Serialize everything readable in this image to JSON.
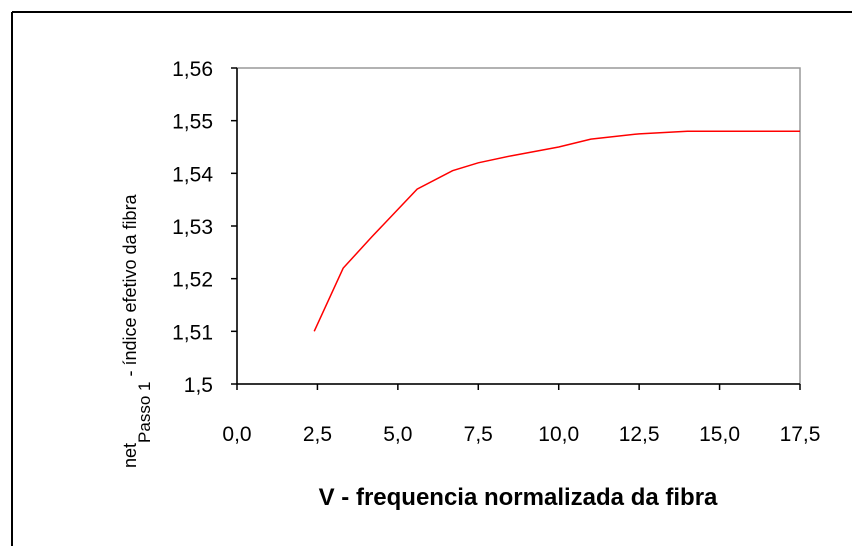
{
  "chart_data": {
    "type": "line",
    "xlabel": "V - frequencia normalizada da fibra",
    "ylabel": "net",
    "ylabel_sub": "Passo 1",
    "ylabel_rest": " - índice efetivo da fibra",
    "x": [
      2.4,
      3.3,
      4.2,
      5.6,
      6.7,
      7.5,
      8.5,
      10,
      11,
      12.5,
      14,
      17.5
    ],
    "series": [
      {
        "color": "#ff0000",
        "values": [
          1.51,
          1.522,
          1.528,
          1.537,
          1.5405,
          1.542,
          1.5433,
          1.545,
          1.5465,
          1.5475,
          1.548,
          1.548
        ]
      }
    ],
    "xlim": [
      0,
      17.5
    ],
    "xticks": [
      {
        "value": 0,
        "label": "0,0"
      },
      {
        "value": 2.5,
        "label": "2,5"
      },
      {
        "value": 5,
        "label": "5,0"
      },
      {
        "value": 7.5,
        "label": "7,5"
      },
      {
        "value": 10,
        "label": "10,0"
      },
      {
        "value": 12.5,
        "label": "12,5"
      },
      {
        "value": 15,
        "label": "15,0"
      },
      {
        "value": 17.5,
        "label": "17,5"
      }
    ],
    "ylim": [
      1.5,
      1.56
    ],
    "yticks": [
      {
        "value": 1.5,
        "label": "1,5"
      },
      {
        "value": 1.51,
        "label": "1,51"
      },
      {
        "value": 1.52,
        "label": "1,52"
      },
      {
        "value": 1.53,
        "label": "1,53"
      },
      {
        "value": 1.54,
        "label": "1,54"
      },
      {
        "value": 1.55,
        "label": "1,55"
      },
      {
        "value": 1.56,
        "label": "1,56"
      }
    ],
    "grid": false
  }
}
